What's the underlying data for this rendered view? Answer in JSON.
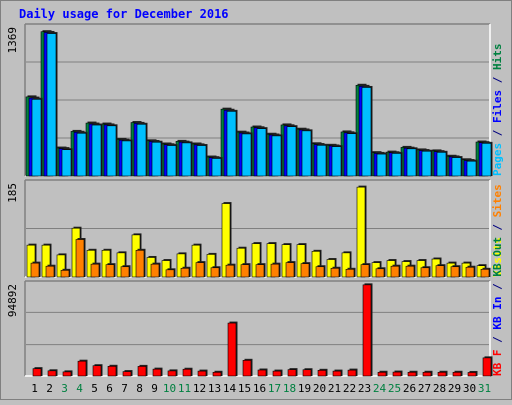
{
  "chart_data": {
    "type": "bar",
    "title": "Daily usage for December 2016",
    "categories": [
      "1",
      "2",
      "3",
      "4",
      "5",
      "6",
      "7",
      "8",
      "9",
      "10",
      "11",
      "12",
      "13",
      "14",
      "15",
      "16",
      "17",
      "18",
      "19",
      "20",
      "21",
      "22",
      "23",
      "24",
      "25",
      "26",
      "27",
      "28",
      "29",
      "30",
      "31"
    ],
    "weekend_days": [
      "3",
      "4",
      "10",
      "11",
      "17",
      "18",
      "24",
      "25",
      "31"
    ],
    "panels": [
      {
        "id": "hits_files_pages",
        "ymax_label": "1369",
        "ylim": [
          0,
          1369
        ],
        "ylabel_parts": [
          {
            "text": "Pages",
            "color": "#00c0ff"
          },
          {
            "text": " / ",
            "color": "#000080"
          },
          {
            "text": "Files",
            "color": "#0000ff"
          },
          {
            "text": " / ",
            "color": "#000080"
          },
          {
            "text": "Hits",
            "color": "#008040"
          }
        ],
        "series": [
          {
            "name": "Hits",
            "color": "#008040",
            "values": [
              722,
              1317,
              255,
              407,
              483,
              474,
              334,
              488,
              321,
              292,
              316,
              292,
              173,
              610,
              400,
              447,
              381,
              466,
              427,
              294,
              280,
              402,
              828,
              213,
              218,
              261,
              238,
              229,
              180,
              148,
              310
            ]
          },
          {
            "name": "Files",
            "color": "#0000ff",
            "values": [
              711,
              1310,
              250,
              399,
              474,
              466,
              327,
              480,
              315,
              285,
              309,
              284,
              167,
              600,
              392,
              440,
              374,
              458,
              420,
              287,
              274,
              394,
              818,
              206,
              212,
              254,
              232,
              222,
              174,
              141,
              304
            ]
          },
          {
            "name": "Pages",
            "color": "#00c0ff",
            "values": [
              700,
              1300,
              240,
              390,
              465,
              458,
              320,
              472,
              308,
              278,
              302,
              278,
              160,
              590,
              384,
              432,
              366,
              450,
              412,
              280,
              268,
              386,
              808,
              200,
              206,
              248,
              226,
              216,
              168,
              135,
              298
            ]
          }
        ]
      },
      {
        "id": "visits_sites",
        "ymax_label": "185",
        "ylim": [
          0,
          185
        ],
        "ylabel_parts": [
          {
            "text": "Visits",
            "color": "#ffff00"
          },
          {
            "text": " / ",
            "color": "#000080"
          },
          {
            "text": "Sites",
            "color": "#ff8000"
          }
        ],
        "series": [
          {
            "name": "Visits",
            "color": "#ffff00",
            "values": [
              62,
              62,
              43,
              95,
              52,
              52,
              47,
              82,
              38,
              32,
              45,
              62,
              44,
              143,
              56,
              65,
              65,
              63,
              63,
              50,
              34,
              47,
              175,
              28,
              32,
              30,
              32,
              35,
              27,
              27,
              22
            ]
          },
          {
            "name": "Sites",
            "color": "#ff8000",
            "values": [
              27,
              21,
              13,
              73,
              25,
              24,
              20,
              52,
              25,
              14,
              17,
              28,
              18,
              23,
              24,
              24,
              25,
              28,
              26,
              20,
              17,
              15,
              24,
              16,
              21,
              21,
              18,
              22,
              20,
              19,
              15
            ]
          }
        ]
      },
      {
        "id": "kb",
        "ymax_label": "94892",
        "ylim": [
          0,
          94892
        ],
        "ylabel_parts": [
          {
            "text": "KB F",
            "color": "#ff0000"
          },
          {
            "text": " / ",
            "color": "#000080"
          },
          {
            "text": "KB In",
            "color": "#0000ff"
          },
          {
            "text": " / ",
            "color": "#000080"
          },
          {
            "text": "KB Out",
            "color": "#008040"
          }
        ],
        "series": [
          {
            "name": "KB F",
            "color": "#ff0000",
            "values": [
              7500,
              5300,
              4200,
              15100,
              10500,
              9900,
              4500,
              9800,
              7000,
              5200,
              6900,
              5000,
              3800,
              54000,
              16000,
              6100,
              5000,
              6500,
              6400,
              5800,
              5000,
              6000,
              93000,
              3800,
              4000,
              3800,
              3800,
              3800,
              3800,
              3600,
              18500
            ]
          }
        ]
      }
    ]
  }
}
